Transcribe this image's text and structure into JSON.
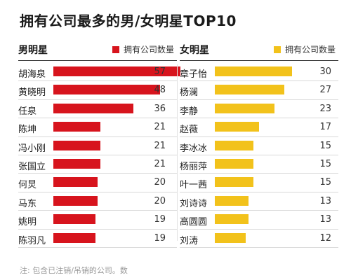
{
  "title": "拥有公司最多的男/女明星TOP10",
  "footnote": "注: 包含已注销/吊销的公司。数",
  "colors": {
    "male": "#d7141d",
    "female": "#f2c21b"
  },
  "chart_data": [
    {
      "type": "bar",
      "group": "男明星",
      "legend": "拥有公司数量",
      "categories": [
        "胡海泉",
        "黄晓明",
        "任泉",
        "陈坤",
        "冯小刚",
        "张国立",
        "何炅",
        "马东",
        "姚明",
        "陈羽凡"
      ],
      "values": [
        57,
        48,
        36,
        21,
        21,
        21,
        20,
        20,
        19,
        19
      ],
      "xlim": [
        0,
        60
      ]
    },
    {
      "type": "bar",
      "group": "女明星",
      "legend": "拥有公司数量",
      "categories": [
        "章子怡",
        "杨澜",
        "李静",
        "赵薇",
        "李冰冰",
        "杨丽萍",
        "叶一茜",
        "刘诗诗",
        "高圆圆",
        "刘涛"
      ],
      "values": [
        30,
        27,
        23,
        17,
        15,
        15,
        15,
        13,
        13,
        12
      ],
      "xlim": [
        0,
        34
      ]
    }
  ]
}
